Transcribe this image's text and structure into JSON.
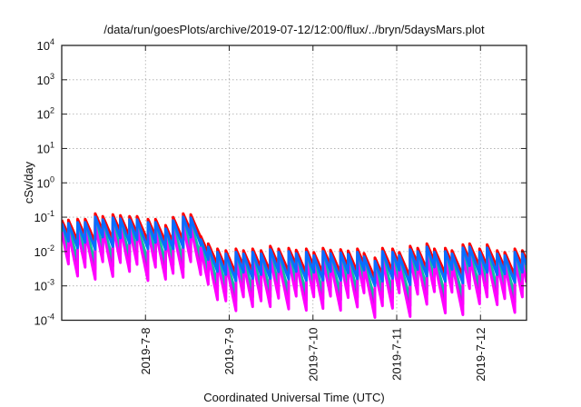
{
  "chart_data": {
    "type": "line",
    "title": "/data/run/goesPlots/archive/2019-07-12/12:00/flux/../bryn/5daysMars.plot",
    "xlabel": "Coordinated Universal Time (UTC)",
    "ylabel": "cSv/day",
    "yscale": "log",
    "ylim_exponents": [
      -4,
      4
    ],
    "y_tick_exponents": [
      -4,
      -3,
      -2,
      -1,
      0,
      1,
      2,
      3,
      4
    ],
    "y_tick_base": "10",
    "xlim_day_of_july": [
      7.0,
      12.55
    ],
    "x_ticks": [
      {
        "day": 8,
        "label": "2019-7-8"
      },
      {
        "day": 9,
        "label": "2019-7-9"
      },
      {
        "day": 10,
        "label": "2019-7-10"
      },
      {
        "day": 11,
        "label": "2019-7-11"
      },
      {
        "day": 12,
        "label": "2019-7-12"
      }
    ],
    "grid": true,
    "legend": "none",
    "note": "Sawtooth dose-rate curves: each jump (day, peak value of top series) followed by exponential decay",
    "jumps": [
      [
        7.0,
        0.083
      ],
      [
        7.08,
        0.083
      ],
      [
        7.19,
        0.088
      ],
      [
        7.28,
        0.088
      ],
      [
        7.4,
        0.127
      ],
      [
        7.49,
        0.106
      ],
      [
        7.61,
        0.12
      ],
      [
        7.7,
        0.113
      ],
      [
        7.81,
        0.106
      ],
      [
        7.9,
        0.106
      ],
      [
        8.03,
        0.088
      ],
      [
        8.12,
        0.088
      ],
      [
        8.24,
        0.058
      ],
      [
        8.33,
        0.1
      ],
      [
        8.45,
        0.127
      ],
      [
        8.54,
        0.12
      ],
      [
        8.66,
        0.028
      ],
      [
        8.75,
        0.017
      ],
      [
        8.86,
        0.012
      ],
      [
        8.96,
        0.0107
      ],
      [
        9.08,
        0.012
      ],
      [
        9.17,
        0.0107
      ],
      [
        9.28,
        0.012
      ],
      [
        9.38,
        0.0107
      ],
      [
        9.49,
        0.0144
      ],
      [
        9.59,
        0.012
      ],
      [
        9.71,
        0.0126
      ],
      [
        9.8,
        0.011
      ],
      [
        9.92,
        0.012
      ],
      [
        10.01,
        0.0095
      ],
      [
        10.12,
        0.0126
      ],
      [
        10.21,
        0.011
      ],
      [
        10.33,
        0.0115
      ],
      [
        10.42,
        0.0105
      ],
      [
        10.53,
        0.012
      ],
      [
        10.61,
        0.0089
      ],
      [
        10.74,
        0.0066
      ],
      [
        10.83,
        0.0126
      ],
      [
        10.95,
        0.012
      ],
      [
        11.03,
        0.0095
      ],
      [
        11.16,
        0.0144
      ],
      [
        11.25,
        0.0126
      ],
      [
        11.36,
        0.017
      ],
      [
        11.45,
        0.012
      ],
      [
        11.58,
        0.0126
      ],
      [
        11.66,
        0.0107
      ],
      [
        11.79,
        0.016
      ],
      [
        11.87,
        0.017
      ],
      [
        11.99,
        0.012
      ],
      [
        12.08,
        0.016
      ],
      [
        12.2,
        0.0107
      ],
      [
        12.29,
        0.0095
      ],
      [
        12.41,
        0.012
      ],
      [
        12.5,
        0.0107
      ]
    ],
    "series": [
      {
        "name": "red",
        "color": "#ff0000",
        "peak_scale": 1.0,
        "decay_per_day": 13
      },
      {
        "name": "purple",
        "color": "#9b30c8",
        "peak_scale": 0.55,
        "decay_per_day": 23
      },
      {
        "name": "teal",
        "color": "#10c0a0",
        "peak_scale": 0.62,
        "decay_per_day": 20
      },
      {
        "name": "magenta",
        "color": "#ff00ff",
        "peak_scale": 0.45,
        "decay_per_day": 27
      },
      {
        "name": "blue",
        "color": "#0a6cff",
        "peak_scale": 0.8,
        "decay_per_day": 15
      }
    ]
  }
}
